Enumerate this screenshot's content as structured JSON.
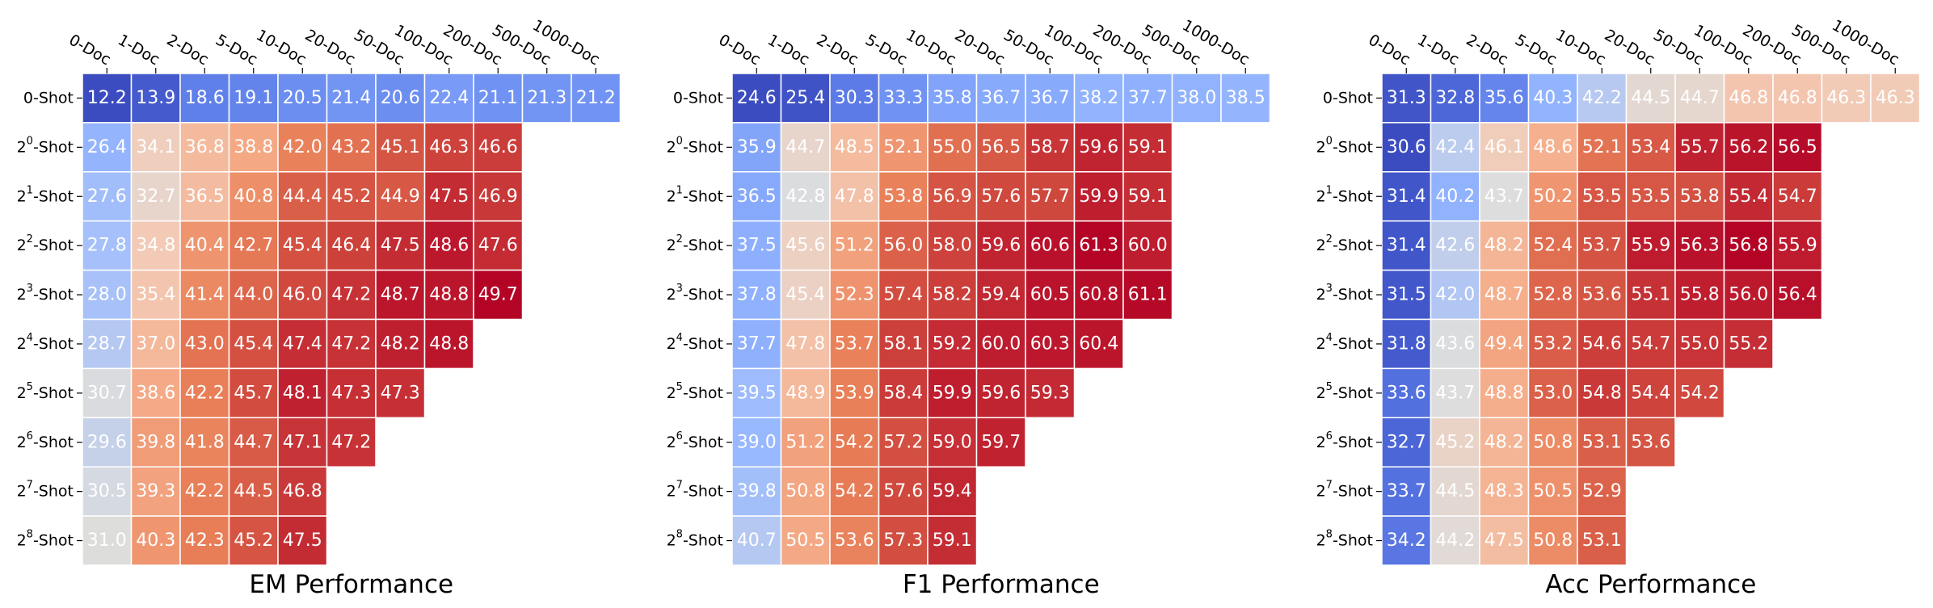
{
  "chart_data": [
    {
      "type": "heatmap",
      "title": "EM Performance",
      "x_tick_labels": [
        "0-Doc",
        "1-Doc",
        "2-Doc",
        "5-Doc",
        "10-Doc",
        "20-Doc",
        "50-Doc",
        "100-Doc",
        "200-Doc",
        "500-Doc",
        "1000-Doc"
      ],
      "y_tick_labels": [
        "0-Shot",
        "2^0-Shot",
        "2^1-Shot",
        "2^2-Shot",
        "2^3-Shot",
        "2^4-Shot",
        "2^5-Shot",
        "2^6-Shot",
        "2^7-Shot",
        "2^8-Shot"
      ],
      "colormap": "coolwarm",
      "values": [
        [
          12.2,
          13.9,
          18.6,
          19.1,
          20.5,
          21.4,
          20.6,
          22.4,
          21.1,
          21.3,
          21.2
        ],
        [
          26.4,
          34.1,
          36.8,
          38.8,
          42.0,
          43.2,
          45.1,
          46.3,
          46.6,
          null,
          null
        ],
        [
          27.6,
          32.7,
          36.5,
          40.8,
          44.4,
          45.2,
          44.9,
          47.5,
          46.9,
          null,
          null
        ],
        [
          27.8,
          34.8,
          40.4,
          42.7,
          45.4,
          46.4,
          47.5,
          48.6,
          47.6,
          null,
          null
        ],
        [
          28.0,
          35.4,
          41.4,
          44.0,
          46.0,
          47.2,
          48.7,
          48.8,
          49.7,
          null,
          null
        ],
        [
          28.7,
          37.0,
          43.0,
          45.4,
          47.4,
          47.2,
          48.2,
          48.8,
          null,
          null,
          null
        ],
        [
          30.7,
          38.6,
          42.2,
          45.7,
          48.1,
          47.3,
          47.3,
          null,
          null,
          null,
          null
        ],
        [
          29.6,
          39.8,
          41.8,
          44.7,
          47.1,
          47.2,
          null,
          null,
          null,
          null,
          null
        ],
        [
          30.5,
          39.3,
          42.2,
          44.5,
          46.8,
          null,
          null,
          null,
          null,
          null,
          null
        ],
        [
          31.0,
          40.3,
          42.3,
          45.2,
          47.5,
          null,
          null,
          null,
          null,
          null,
          null
        ]
      ]
    },
    {
      "type": "heatmap",
      "title": "F1 Performance",
      "x_tick_labels": [
        "0-Doc",
        "1-Doc",
        "2-Doc",
        "5-Doc",
        "10-Doc",
        "20-Doc",
        "50-Doc",
        "100-Doc",
        "200-Doc",
        "500-Doc",
        "1000-Doc"
      ],
      "y_tick_labels": [
        "0-Shot",
        "2^0-Shot",
        "2^1-Shot",
        "2^2-Shot",
        "2^3-Shot",
        "2^4-Shot",
        "2^5-Shot",
        "2^6-Shot",
        "2^7-Shot",
        "2^8-Shot"
      ],
      "colormap": "coolwarm",
      "values": [
        [
          24.6,
          25.4,
          30.3,
          33.3,
          35.8,
          36.7,
          36.7,
          38.2,
          37.7,
          38.0,
          38.5
        ],
        [
          35.9,
          44.7,
          48.5,
          52.1,
          55.0,
          56.5,
          58.7,
          59.6,
          59.1,
          null,
          null
        ],
        [
          36.5,
          42.8,
          47.8,
          53.8,
          56.9,
          57.6,
          57.7,
          59.9,
          59.1,
          null,
          null
        ],
        [
          37.5,
          45.6,
          51.2,
          56.0,
          58.0,
          59.6,
          60.6,
          61.3,
          60.0,
          null,
          null
        ],
        [
          37.8,
          45.4,
          52.3,
          57.4,
          58.2,
          59.4,
          60.5,
          60.8,
          61.1,
          null,
          null
        ],
        [
          37.7,
          47.8,
          53.7,
          58.1,
          59.2,
          60.0,
          60.3,
          60.4,
          null,
          null,
          null
        ],
        [
          39.5,
          48.9,
          53.9,
          58.4,
          59.9,
          59.6,
          59.3,
          null,
          null,
          null,
          null
        ],
        [
          39.0,
          51.2,
          54.2,
          57.2,
          59.0,
          59.7,
          null,
          null,
          null,
          null,
          null
        ],
        [
          39.8,
          50.8,
          54.2,
          57.6,
          59.4,
          null,
          null,
          null,
          null,
          null,
          null
        ],
        [
          40.7,
          50.5,
          53.6,
          57.3,
          59.1,
          null,
          null,
          null,
          null,
          null,
          null
        ]
      ]
    },
    {
      "type": "heatmap",
      "title": "Acc Performance",
      "x_tick_labels": [
        "0-Doc",
        "1-Doc",
        "2-Doc",
        "5-Doc",
        "10-Doc",
        "20-Doc",
        "50-Doc",
        "100-Doc",
        "200-Doc",
        "500-Doc",
        "1000-Doc"
      ],
      "y_tick_labels": [
        "0-Shot",
        "2^0-Shot",
        "2^1-Shot",
        "2^2-Shot",
        "2^3-Shot",
        "2^4-Shot",
        "2^5-Shot",
        "2^6-Shot",
        "2^7-Shot",
        "2^8-Shot"
      ],
      "colormap": "coolwarm",
      "values": [
        [
          31.3,
          32.8,
          35.6,
          40.3,
          42.2,
          44.5,
          44.7,
          46.8,
          46.8,
          46.3,
          46.3
        ],
        [
          30.6,
          42.4,
          46.1,
          48.6,
          52.1,
          53.4,
          55.7,
          56.2,
          56.5,
          null,
          null
        ],
        [
          31.4,
          40.2,
          43.7,
          50.2,
          53.5,
          53.5,
          53.8,
          55.4,
          54.7,
          null,
          null
        ],
        [
          31.4,
          42.6,
          48.2,
          52.4,
          53.7,
          55.9,
          56.3,
          56.8,
          55.9,
          null,
          null
        ],
        [
          31.5,
          42.0,
          48.7,
          52.8,
          53.6,
          55.1,
          55.8,
          56.0,
          56.4,
          null,
          null
        ],
        [
          31.8,
          43.6,
          49.4,
          53.2,
          54.6,
          54.7,
          55.0,
          55.2,
          null,
          null,
          null
        ],
        [
          33.6,
          43.7,
          48.8,
          53.0,
          54.8,
          54.4,
          54.2,
          null,
          null,
          null,
          null
        ],
        [
          32.7,
          45.2,
          48.2,
          50.8,
          53.1,
          53.6,
          null,
          null,
          null,
          null,
          null
        ],
        [
          33.7,
          44.5,
          48.3,
          50.5,
          52.9,
          null,
          null,
          null,
          null,
          null,
          null
        ],
        [
          34.2,
          44.2,
          47.5,
          50.8,
          53.1,
          null,
          null,
          null,
          null,
          null,
          null
        ]
      ]
    }
  ]
}
